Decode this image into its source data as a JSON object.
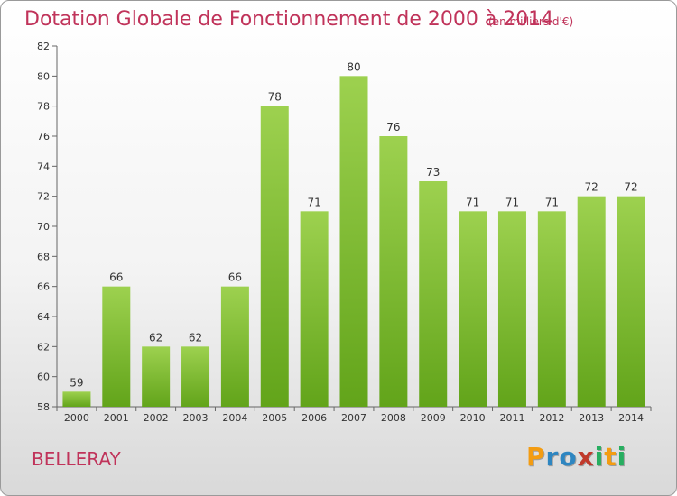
{
  "chart_data": {
    "type": "bar",
    "title": "Dotation Globale de Fonctionnement de 2000 à 2014",
    "subtitle": "(en milliers d'€)",
    "categories": [
      "2000",
      "2001",
      "2002",
      "2003",
      "2004",
      "2005",
      "2006",
      "2007",
      "2008",
      "2009",
      "2010",
      "2011",
      "2012",
      "2013",
      "2014"
    ],
    "values": [
      59,
      66,
      62,
      62,
      66,
      78,
      71,
      80,
      76,
      73,
      71,
      71,
      71,
      72,
      72
    ],
    "xlabel": "",
    "ylabel": "",
    "ylim": [
      58,
      82
    ],
    "yticks": [
      58,
      60,
      62,
      64,
      66,
      68,
      70,
      72,
      74,
      76,
      78,
      80,
      82
    ],
    "grid": false,
    "bar_color": "#7cbc30",
    "title_color": "#c0335a"
  },
  "commune": "BELLERAY",
  "logo": {
    "letters": [
      "P",
      "r",
      "o",
      "x",
      "i",
      "t",
      "i"
    ],
    "colors": [
      "#f39c12",
      "#2e86c1",
      "#2e86c1",
      "#c0392b",
      "#27ae60",
      "#f39c12",
      "#27ae60"
    ]
  }
}
